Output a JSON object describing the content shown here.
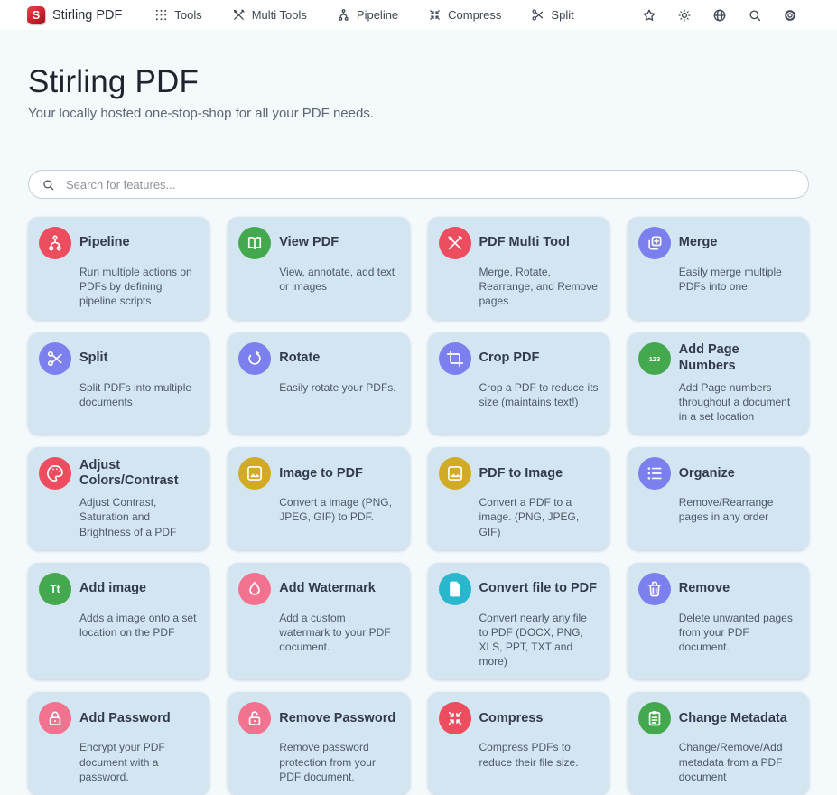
{
  "navbar": {
    "brand": "Stirling PDF",
    "items": [
      {
        "label": "Tools",
        "icon": "grid-icon"
      },
      {
        "label": "Multi Tools",
        "icon": "multi-tools-icon"
      },
      {
        "label": "Pipeline",
        "icon": "pipeline-icon"
      },
      {
        "label": "Compress",
        "icon": "compress-icon"
      },
      {
        "label": "Split",
        "icon": "split-icon"
      }
    ],
    "right_icons": [
      "star-icon",
      "sun-icon",
      "globe-icon",
      "search-icon",
      "gear-icon"
    ]
  },
  "header": {
    "title": "Stirling PDF",
    "subtitle": "Your locally hosted one-stop-shop for all your PDF needs."
  },
  "search": {
    "placeholder": "Search for features..."
  },
  "colors": {
    "brand_red": "#c5222e",
    "card_background": "#d4e5f2",
    "page_background": "#f4f9fc",
    "icon_red": "#ee4c5f",
    "icon_green": "#44a94e",
    "icon_purple": "#7b80ee",
    "icon_gold": "#d2ab26",
    "icon_pink": "#f27290",
    "icon_cyan": "#28b7cc"
  },
  "cards": [
    {
      "title": "Pipeline",
      "description": "Run multiple actions on PDFs by defining pipeline scripts",
      "icon": "pipeline-icon",
      "color": "#ee4c5f"
    },
    {
      "title": "View PDF",
      "description": "View, annotate, add text or images",
      "icon": "book-open-icon",
      "color": "#44a94e"
    },
    {
      "title": "PDF Multi Tool",
      "description": "Merge, Rotate, Rearrange, and Remove pages",
      "icon": "multi-tools-icon",
      "color": "#ee4c5f"
    },
    {
      "title": "Merge",
      "description": "Easily merge multiple PDFs into one.",
      "icon": "merge-icon",
      "color": "#7b80ee"
    },
    {
      "title": "Split",
      "description": "Split PDFs into multiple documents",
      "icon": "split-icon",
      "color": "#7b80ee"
    },
    {
      "title": "Rotate",
      "description": "Easily rotate your PDFs.",
      "icon": "rotate-icon",
      "color": "#7b80ee"
    },
    {
      "title": "Crop PDF",
      "description": "Crop a PDF to reduce its size (maintains text!)",
      "icon": "crop-icon",
      "color": "#7b80ee"
    },
    {
      "title": "Add Page Numbers",
      "description": "Add Page numbers throughout a document in a set location",
      "icon": "numbers-123-icon",
      "color": "#44a94e"
    },
    {
      "title": "Adjust Colors/Contrast",
      "description": "Adjust Contrast, Saturation and Brightness of a PDF",
      "icon": "palette-icon",
      "color": "#ee4c5f"
    },
    {
      "title": "Image to PDF",
      "description": "Convert a image (PNG, JPEG, GIF) to PDF.",
      "icon": "image-icon",
      "color": "#d2ab26"
    },
    {
      "title": "PDF to Image",
      "description": "Convert a PDF to a image. (PNG, JPEG, GIF)",
      "icon": "image-icon",
      "color": "#d2ab26"
    },
    {
      "title": "Organize",
      "description": "Remove/Rearrange pages in any order",
      "icon": "list-icon",
      "color": "#7b80ee"
    },
    {
      "title": "Add image",
      "description": "Adds a image onto a set location on the PDF",
      "icon": "text-Tt-icon",
      "color": "#44a94e"
    },
    {
      "title": "Add Watermark",
      "description": "Add a custom watermark to your PDF document.",
      "icon": "droplet-icon",
      "color": "#f27290"
    },
    {
      "title": "Convert file to PDF",
      "description": "Convert nearly any file to PDF (DOCX, PNG, XLS, PPT, TXT and more)",
      "icon": "file-icon",
      "color": "#28b7cc"
    },
    {
      "title": "Remove",
      "description": "Delete unwanted pages from your PDF document.",
      "icon": "trash-icon",
      "color": "#7b80ee"
    },
    {
      "title": "Add Password",
      "description": "Encrypt your PDF document with a password.",
      "icon": "lock-icon",
      "color": "#f27290"
    },
    {
      "title": "Remove Password",
      "description": "Remove password protection from your PDF document.",
      "icon": "unlock-icon",
      "color": "#f27290"
    },
    {
      "title": "Compress",
      "description": "Compress PDFs to reduce their file size.",
      "icon": "compress-icon",
      "color": "#ee4c5f"
    },
    {
      "title": "Change Metadata",
      "description": "Change/Remove/Add metadata from a PDF document",
      "icon": "clipboard-icon",
      "color": "#44a94e"
    }
  ]
}
